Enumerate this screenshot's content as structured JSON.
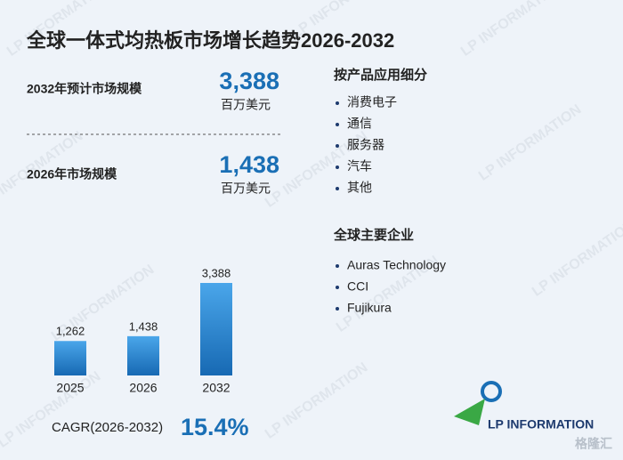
{
  "title": "全球一体式均热板市场增长趋势2026-2032",
  "stats": [
    {
      "label": "2032年预计市场规模",
      "value": "3,388",
      "unit": "百万美元"
    },
    {
      "label": "2026年市场规模",
      "value": "1,438",
      "unit": "百万美元"
    }
  ],
  "segments": {
    "title": "按产品应用细分",
    "items": [
      "消费电子",
      "通信",
      "服务器",
      "汽车",
      "其他"
    ]
  },
  "companies": {
    "title": "全球主要企业",
    "items": [
      "Auras Technology",
      "CCI",
      "Fujikura"
    ]
  },
  "cagr": {
    "label": "CAGR(2026-2032)",
    "value": "15.4%"
  },
  "logo": "LP INFORMATION",
  "watermark": "LP INFORMATION",
  "source_mark": "格隆汇",
  "chart_data": {
    "type": "bar",
    "categories": [
      "2025",
      "2026",
      "2032"
    ],
    "values": [
      1262,
      1438,
      3388
    ],
    "value_labels": [
      "1,262",
      "1,438",
      "3,388"
    ],
    "color": "#1a72bf"
  }
}
